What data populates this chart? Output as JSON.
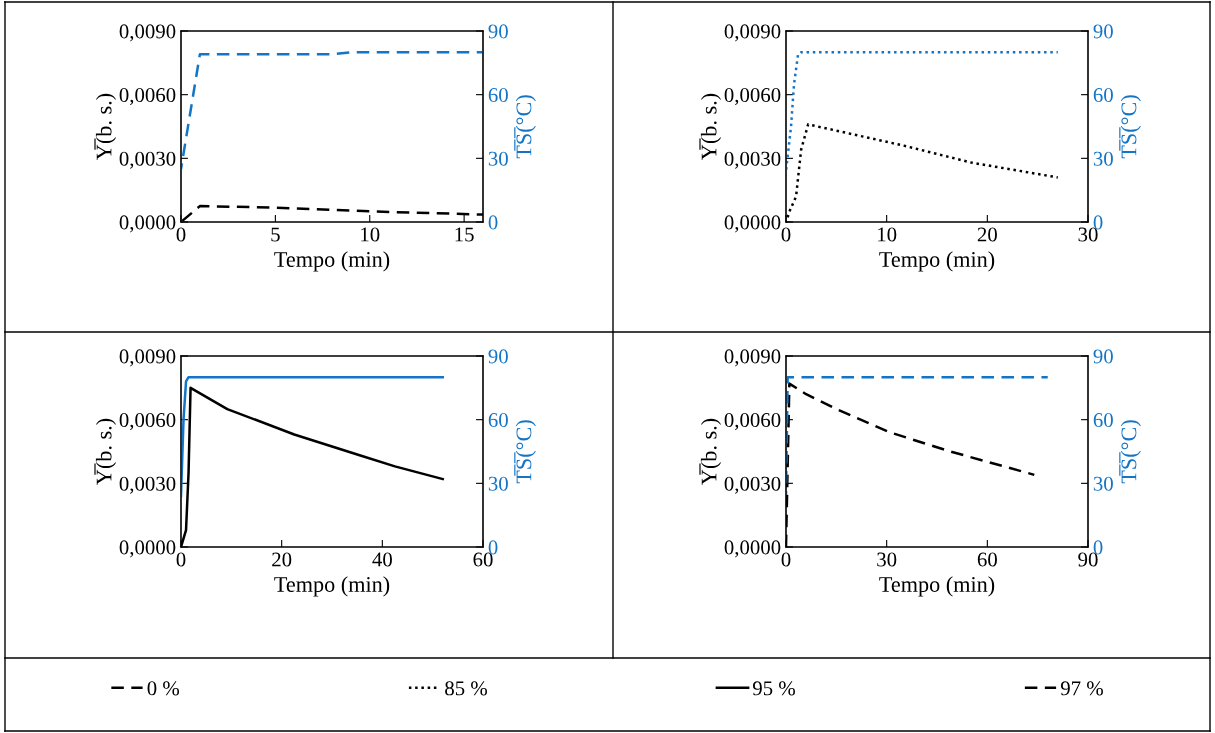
{
  "chart_data": [
    {
      "type": "line",
      "xlabel": "Tempo (min)",
      "ylabel": "Y̅(b. s.)",
      "y2label": "T̅S̅(°C)",
      "line_style": "dashed",
      "legend": "bottom",
      "xlim": [
        0,
        16
      ],
      "xticks": [
        0,
        5,
        10,
        15
      ],
      "ylim": [
        0,
        0.009
      ],
      "yticks": [
        {
          "value": 0,
          "label": "0,0000"
        },
        {
          "value": 0.003,
          "label": "0,0030"
        },
        {
          "value": 0.006,
          "label": "0,0060"
        },
        {
          "value": 0.009,
          "label": "0,0090"
        }
      ],
      "y2lim": [
        0,
        90
      ],
      "y2ticks": [
        0,
        30,
        60,
        90
      ],
      "series": [
        {
          "name": "0 %",
          "color": "#000000",
          "x": [
            0,
            1,
            5,
            10,
            16
          ],
          "values": [
            0,
            0.00075,
            0.00068,
            0.0005,
            0.00035
          ]
        },
        {
          "color": "#1475c6",
          "axis": "y2",
          "x": [
            0,
            1,
            8,
            9,
            16
          ],
          "values": [
            25,
            79,
            79,
            80,
            80
          ]
        }
      ]
    },
    {
      "type": "line",
      "xlabel": "Tempo (min)",
      "ylabel": "Y̅(b. s.)",
      "y2label": "T̅S̅(°C)",
      "line_style": "dotted",
      "legend": "bottom",
      "xlim": [
        0,
        30
      ],
      "xticks": [
        0,
        10,
        20,
        30
      ],
      "ylim": [
        0,
        0.009
      ],
      "yticks": [
        {
          "value": 0,
          "label": "0,0000"
        },
        {
          "value": 0.003,
          "label": "0,0030"
        },
        {
          "value": 0.006,
          "label": "0,0060"
        },
        {
          "value": 0.009,
          "label": "0,0090"
        }
      ],
      "y2lim": [
        0,
        90
      ],
      "y2ticks": [
        0,
        30,
        60,
        90
      ],
      "series": [
        {
          "name": "85 %",
          "color": "#000000",
          "x": [
            0,
            0.4,
            1,
            1.5,
            2.2,
            11.7,
            18.4,
            27
          ],
          "values": [
            0,
            0.00056,
            0.0012,
            0.0034,
            0.0046,
            0.0036,
            0.0028,
            0.0021
          ]
        },
        {
          "color": "#1475c6",
          "axis": "y2",
          "x": [
            0,
            0.5,
            0.8,
            1.2,
            1.5,
            27
          ],
          "values": [
            24,
            45,
            65,
            79,
            80,
            80
          ]
        }
      ]
    },
    {
      "type": "line",
      "xlabel": "Tempo (min)",
      "ylabel": "Y̅(b. s.)",
      "y2label": "T̅S̅(°C)",
      "line_style": "solid",
      "legend": "bottom",
      "xlim": [
        0,
        60
      ],
      "xticks": [
        0,
        20,
        40,
        60
      ],
      "ylim": [
        0,
        0.009
      ],
      "yticks": [
        {
          "value": 0,
          "label": "0,0000"
        },
        {
          "value": 0.003,
          "label": "0,0030"
        },
        {
          "value": 0.006,
          "label": "0,0060"
        },
        {
          "value": 0.009,
          "label": "0,0090"
        }
      ],
      "y2lim": [
        0,
        90
      ],
      "y2ticks": [
        0,
        30,
        60,
        90
      ],
      "series": [
        {
          "name": "95 %",
          "color": "#000000",
          "x": [
            0,
            1,
            1.5,
            1.9,
            9.2,
            22.5,
            35.8,
            42.5,
            52
          ],
          "values": [
            0,
            0.0008,
            0.0035,
            0.0075,
            0.0065,
            0.0053,
            0.0043,
            0.0038,
            0.0032
          ]
        },
        {
          "color": "#1475c6",
          "axis": "y2",
          "x": [
            0,
            0.5,
            1,
            1.5,
            52
          ],
          "values": [
            24,
            60,
            78,
            80,
            80
          ]
        }
      ]
    },
    {
      "type": "line",
      "xlabel": "Tempo (min)",
      "ylabel": "Y̅(b. s.)",
      "y2label": "T̅S̅(°C)",
      "line_style": "dashed",
      "legend": "bottom",
      "xlim": [
        0,
        90
      ],
      "xticks": [
        0,
        30,
        60,
        90
      ],
      "ylim": [
        0,
        0.009
      ],
      "yticks": [
        {
          "value": 0,
          "label": "0,0000"
        },
        {
          "value": 0.003,
          "label": "0,0030"
        },
        {
          "value": 0.006,
          "label": "0,0060"
        },
        {
          "value": 0.009,
          "label": "0,0090"
        }
      ],
      "y2lim": [
        0,
        90
      ],
      "y2ticks": [
        0,
        30,
        60,
        90
      ],
      "series": [
        {
          "name": "97 %",
          "color": "#000000",
          "x": [
            0,
            1,
            6,
            15,
            31,
            49,
            74
          ],
          "values": [
            0,
            0.0077,
            0.0072,
            0.0065,
            0.0054,
            0.0045,
            0.0034
          ]
        },
        {
          "color": "#1475c6",
          "axis": "y2",
          "x": [
            0,
            0.5,
            78
          ],
          "values": [
            25,
            80,
            80
          ]
        }
      ]
    }
  ]
}
